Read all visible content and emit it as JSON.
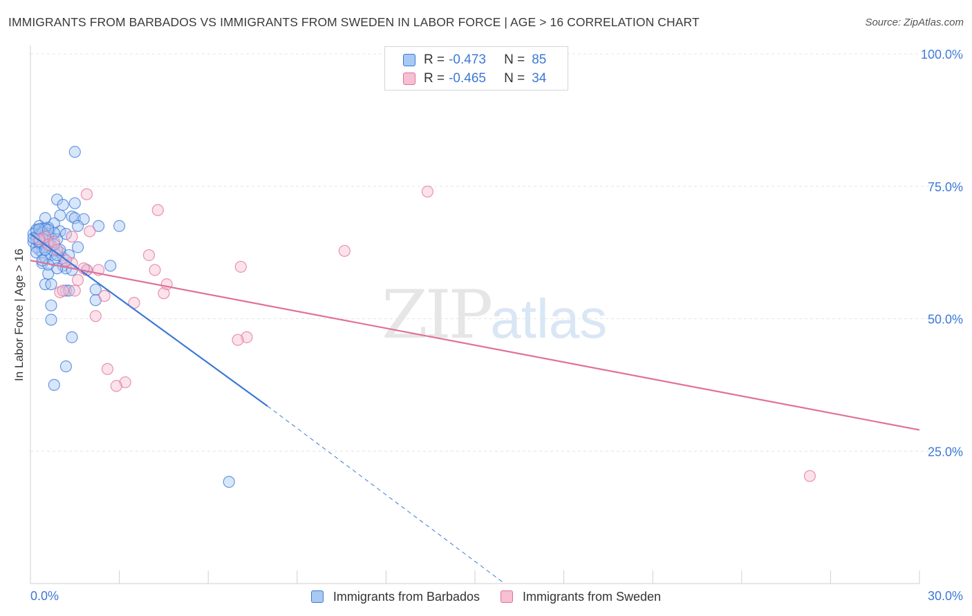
{
  "header": {
    "title": "IMMIGRANTS FROM BARBADOS VS IMMIGRANTS FROM SWEDEN IN LABOR FORCE | AGE > 16 CORRELATION CHART",
    "source": "Source: ZipAtlas.com"
  },
  "watermark": {
    "zip": "ZIP",
    "atlas": "atlas"
  },
  "colors": {
    "barbados": "#3b78d8",
    "barbados_fill": "#a9c8f2",
    "sweden": "#e0709a",
    "sweden_fill": "#f6bfd2",
    "axis_text": "#3b78d8",
    "grid": "#e4e4e4"
  },
  "legend_top": {
    "rows": [
      {
        "r_label": "R =",
        "r_value": "-0.473",
        "n_label": "N =",
        "n_value": "85"
      },
      {
        "r_label": "R =",
        "r_value": "-0.465",
        "n_label": "N =",
        "n_value": "34"
      }
    ]
  },
  "legend_bottom": {
    "items": [
      {
        "label": "Immigrants from Barbados"
      },
      {
        "label": "Immigrants from Sweden"
      }
    ]
  },
  "chart_data": {
    "type": "scatter",
    "title": "IMMIGRANTS FROM BARBADOS VS IMMIGRANTS FROM SWEDEN IN LABOR FORCE | AGE > 16 CORRELATION CHART",
    "xlabel": "",
    "ylabel": "In Labor Force | Age > 16",
    "xlim": [
      0,
      30
    ],
    "ylim": [
      0,
      100
    ],
    "x_tick_labels": [
      "0.0%",
      "30.0%"
    ],
    "y_ticks": [
      25,
      50,
      75,
      100
    ],
    "y_tick_labels": [
      "25.0%",
      "50.0%",
      "75.0%",
      "100.0%"
    ],
    "grid": true,
    "series": [
      {
        "name": "Immigrants from Barbados",
        "r": -0.473,
        "n": 85,
        "trend": {
          "x0": 0.0,
          "y0": 66.0,
          "x1": 8.0,
          "y1": 33.5,
          "dash_to_x": 16.0,
          "dash_to_y": 0.0
        },
        "points": [
          [
            1.5,
            81.5
          ],
          [
            0.9,
            72.5
          ],
          [
            1.1,
            71.5
          ],
          [
            1.5,
            71.8
          ],
          [
            0.5,
            69.0
          ],
          [
            1.0,
            69.5
          ],
          [
            1.4,
            69.3
          ],
          [
            1.5,
            69.0
          ],
          [
            1.8,
            68.8
          ],
          [
            0.8,
            68.0
          ],
          [
            0.3,
            67.5
          ],
          [
            0.4,
            67.0
          ],
          [
            0.6,
            67.2
          ],
          [
            1.6,
            67.5
          ],
          [
            3.0,
            67.5
          ],
          [
            2.3,
            67.5
          ],
          [
            0.2,
            66.5
          ],
          [
            0.4,
            66.5
          ],
          [
            0.6,
            66.0
          ],
          [
            1.0,
            66.5
          ],
          [
            1.2,
            66.0
          ],
          [
            0.5,
            65.5
          ],
          [
            0.2,
            65.5
          ],
          [
            0.7,
            65.2
          ],
          [
            0.9,
            65.0
          ],
          [
            0.3,
            64.8
          ],
          [
            0.1,
            64.5
          ],
          [
            0.4,
            64.0
          ],
          [
            0.6,
            63.5
          ],
          [
            0.3,
            63.0
          ],
          [
            0.5,
            63.2
          ],
          [
            0.8,
            62.8
          ],
          [
            1.6,
            63.5
          ],
          [
            0.4,
            62.5
          ],
          [
            0.7,
            62.0
          ],
          [
            1.0,
            62.5
          ],
          [
            1.1,
            61.5
          ],
          [
            0.8,
            61.0
          ],
          [
            0.4,
            60.5
          ],
          [
            1.1,
            60.0
          ],
          [
            1.2,
            59.5
          ],
          [
            1.4,
            59.2
          ],
          [
            1.9,
            59.2
          ],
          [
            2.7,
            60.0
          ],
          [
            0.6,
            58.5
          ],
          [
            0.9,
            59.5
          ],
          [
            0.5,
            56.5
          ],
          [
            0.7,
            56.5
          ],
          [
            2.2,
            55.5
          ],
          [
            1.2,
            55.3
          ],
          [
            1.3,
            55.3
          ],
          [
            2.2,
            53.5
          ],
          [
            0.7,
            52.5
          ],
          [
            0.7,
            49.8
          ],
          [
            1.4,
            46.5
          ],
          [
            1.2,
            41.0
          ],
          [
            0.8,
            37.5
          ],
          [
            6.7,
            19.2
          ],
          [
            0.2,
            66.8
          ],
          [
            0.3,
            65.8
          ],
          [
            0.5,
            67.0
          ],
          [
            0.6,
            64.5
          ],
          [
            0.2,
            63.5
          ],
          [
            0.1,
            66.0
          ],
          [
            0.4,
            66.2
          ],
          [
            0.3,
            64.2
          ],
          [
            0.2,
            65.0
          ],
          [
            0.5,
            64.8
          ],
          [
            0.6,
            65.6
          ],
          [
            0.8,
            66.2
          ],
          [
            0.4,
            65.2
          ],
          [
            0.3,
            66.9
          ],
          [
            0.7,
            63.8
          ],
          [
            0.9,
            62.0
          ],
          [
            1.0,
            63.0
          ],
          [
            0.5,
            61.5
          ],
          [
            0.6,
            60.2
          ],
          [
            0.2,
            62.5
          ],
          [
            0.4,
            61.0
          ],
          [
            1.3,
            62.0
          ],
          [
            0.8,
            64.0
          ],
          [
            0.3,
            64.6
          ],
          [
            0.5,
            63.0
          ],
          [
            0.1,
            65.2
          ],
          [
            0.6,
            66.8
          ]
        ]
      },
      {
        "name": "Immigrants from Sweden",
        "r": -0.465,
        "n": 34,
        "trend": {
          "x0": 0.0,
          "y0": 61.0,
          "x1": 30.0,
          "y1": 29.0
        },
        "points": [
          [
            13.4,
            74.0
          ],
          [
            1.9,
            73.5
          ],
          [
            4.3,
            70.5
          ],
          [
            2.0,
            66.5
          ],
          [
            0.5,
            65.5
          ],
          [
            1.4,
            65.5
          ],
          [
            0.6,
            64.0
          ],
          [
            4.0,
            62.0
          ],
          [
            10.6,
            62.8
          ],
          [
            7.1,
            59.8
          ],
          [
            1.4,
            60.5
          ],
          [
            1.9,
            59.2
          ],
          [
            2.3,
            59.2
          ],
          [
            4.2,
            59.2
          ],
          [
            1.6,
            57.3
          ],
          [
            4.6,
            56.5
          ],
          [
            1.0,
            55.0
          ],
          [
            1.1,
            55.3
          ],
          [
            1.5,
            55.3
          ],
          [
            4.5,
            54.8
          ],
          [
            2.5,
            54.3
          ],
          [
            3.5,
            53.0
          ],
          [
            2.2,
            50.5
          ],
          [
            7.3,
            46.5
          ],
          [
            7.0,
            46.0
          ],
          [
            2.6,
            40.5
          ],
          [
            3.2,
            38.0
          ],
          [
            2.9,
            37.3
          ],
          [
            26.3,
            20.3
          ],
          [
            0.3,
            65.0
          ],
          [
            0.8,
            64.5
          ],
          [
            1.2,
            61.0
          ],
          [
            1.8,
            59.5
          ],
          [
            0.9,
            63.0
          ]
        ]
      }
    ]
  }
}
